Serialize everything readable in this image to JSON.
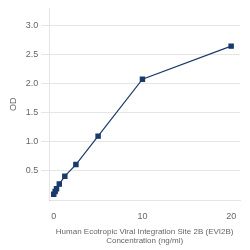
{
  "chart_data": {
    "type": "line",
    "xlabel": "Human Ecotropic Viral Integration Site 2B (EVI2B)\nConcentration (ng/ml)",
    "ylabel": "OD",
    "x": [
      0,
      0.156,
      0.312,
      0.625,
      1.25,
      2.5,
      5,
      10,
      20
    ],
    "series": [
      {
        "values": [
          0.1,
          0.148,
          0.195,
          0.275,
          0.41,
          0.61,
          1.1,
          2.08,
          2.65
        ],
        "color": "#1a3a6b",
        "marker": "square"
      }
    ],
    "xlim": [
      -0.5,
      21
    ],
    "xticks": [
      0,
      10,
      20
    ],
    "ylim": [
      0,
      3.3
    ],
    "yticks": [
      0.5,
      {
        "value": 1,
        "label": "1.0"
      },
      1.5,
      {
        "value": 2,
        "label": "2.0"
      },
      2.5,
      {
        "value": 3,
        "label": "3.0"
      }
    ],
    "grid": "y"
  }
}
